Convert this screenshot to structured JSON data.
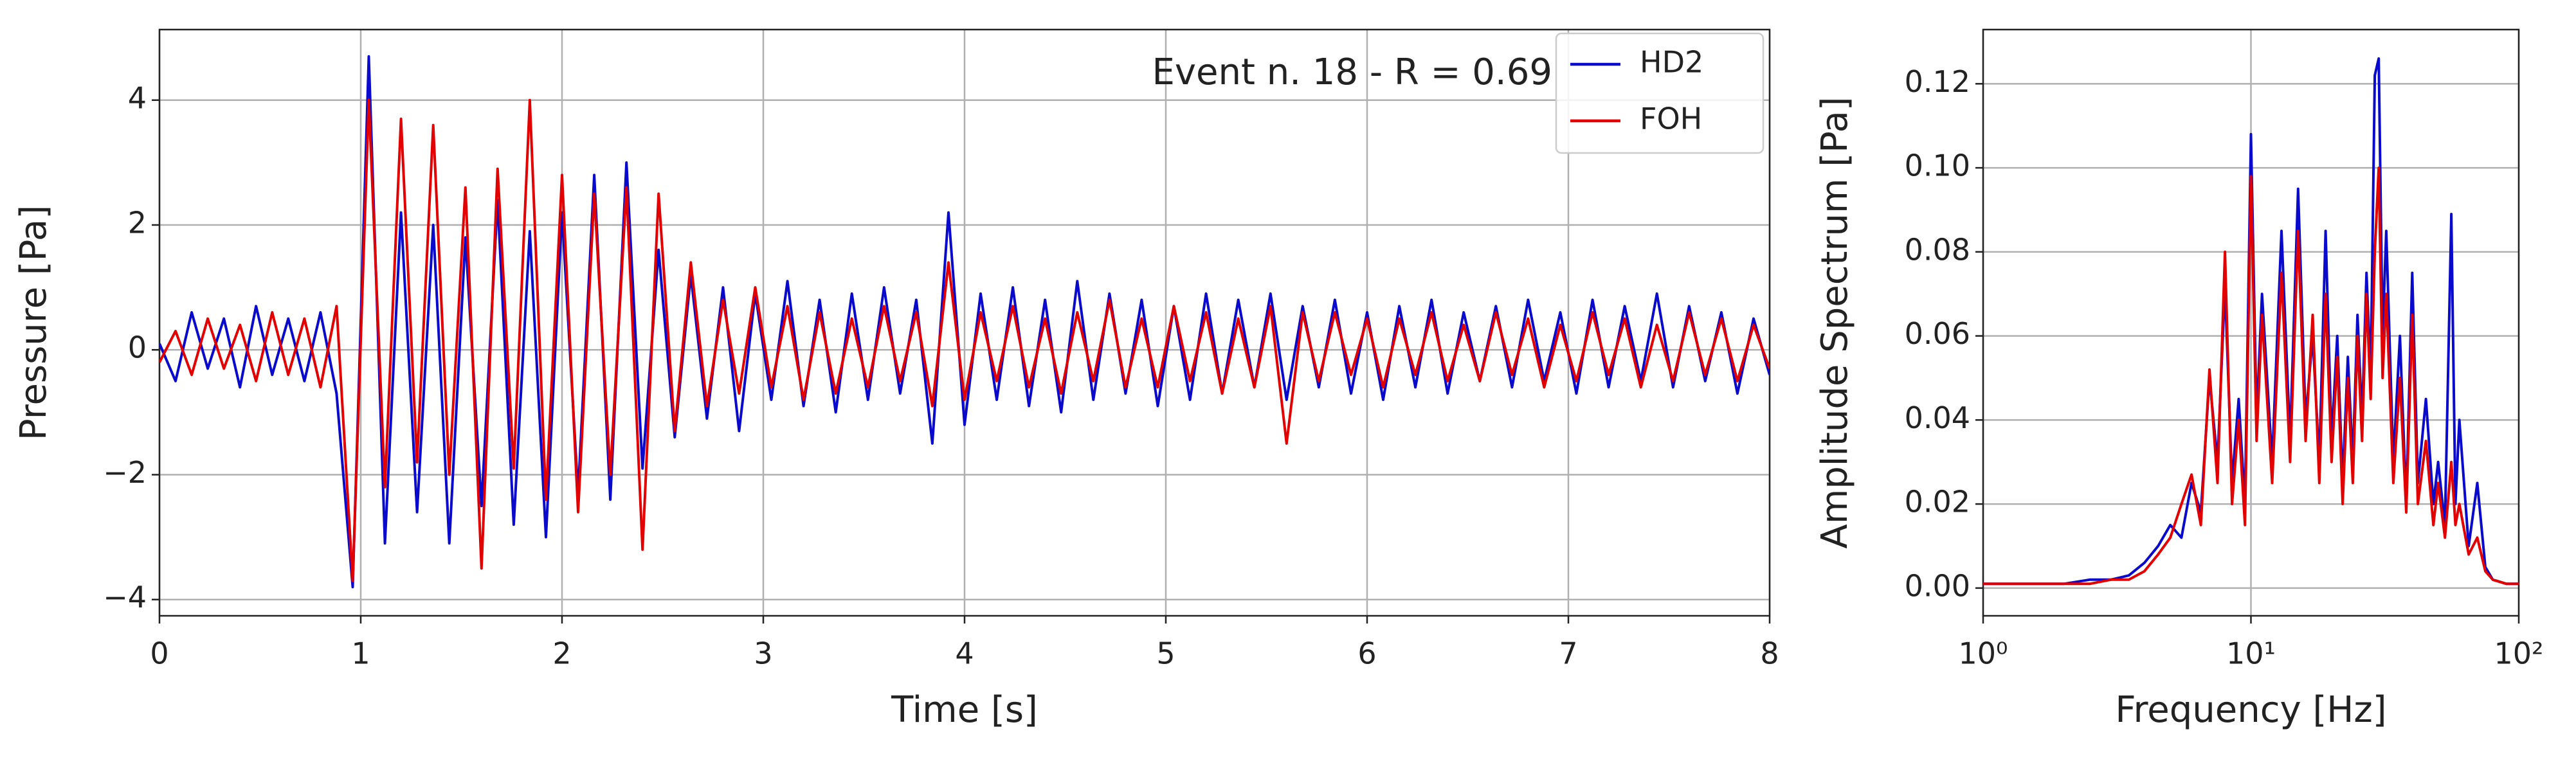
{
  "chart_data": [
    {
      "type": "line",
      "annotation": "Event n. 18 - R = 0.69",
      "xlabel": "Time [s]",
      "ylabel": "Pressure [Pa]",
      "x": [
        0,
        0.08,
        0.16,
        0.24,
        0.32,
        0.4,
        0.48,
        0.56,
        0.64,
        0.72,
        0.8,
        0.88,
        0.96,
        1.04,
        1.12,
        1.2,
        1.28,
        1.36,
        1.44,
        1.52,
        1.6,
        1.68,
        1.76,
        1.84,
        1.92,
        2.0,
        2.08,
        2.16,
        2.24,
        2.32,
        2.4,
        2.48,
        2.56,
        2.64,
        2.72,
        2.8,
        2.88,
        2.96,
        3.04,
        3.12,
        3.2,
        3.28,
        3.36,
        3.44,
        3.52,
        3.6,
        3.68,
        3.76,
        3.84,
        3.92,
        4.0,
        4.08,
        4.16,
        4.24,
        4.32,
        4.4,
        4.48,
        4.56,
        4.64,
        4.72,
        4.8,
        4.88,
        4.96,
        5.04,
        5.12,
        5.2,
        5.28,
        5.36,
        5.44,
        5.52,
        5.6,
        5.68,
        5.76,
        5.84,
        5.92,
        6.0,
        6.08,
        6.16,
        6.24,
        6.32,
        6.4,
        6.48,
        6.56,
        6.64,
        6.72,
        6.8,
        6.88,
        6.96,
        7.04,
        7.12,
        7.2,
        7.28,
        7.36,
        7.44,
        7.52,
        7.6,
        7.68,
        7.76,
        7.84,
        7.92,
        8.0
      ],
      "series": [
        {
          "name": "HD2",
          "color": "#0a0acc",
          "values": [
            0.1,
            -0.5,
            0.6,
            -0.3,
            0.5,
            -0.6,
            0.7,
            -0.4,
            0.5,
            -0.5,
            0.6,
            -0.7,
            -3.8,
            4.7,
            -3.1,
            2.2,
            -2.6,
            2.0,
            -3.1,
            1.8,
            -2.5,
            2.4,
            -2.8,
            1.9,
            -3.0,
            2.2,
            -2.3,
            2.8,
            -2.4,
            3.0,
            -1.9,
            1.6,
            -1.4,
            1.2,
            -1.1,
            1.0,
            -1.3,
            0.9,
            -0.8,
            1.1,
            -0.9,
            0.8,
            -1.0,
            0.9,
            -0.8,
            1.0,
            -0.7,
            0.8,
            -1.5,
            2.2,
            -1.2,
            0.9,
            -0.8,
            1.0,
            -0.9,
            0.8,
            -1.0,
            1.1,
            -0.8,
            0.9,
            -0.7,
            0.8,
            -0.9,
            0.7,
            -0.8,
            0.9,
            -0.7,
            0.8,
            -0.6,
            0.9,
            -0.8,
            0.7,
            -0.6,
            0.8,
            -0.7,
            0.6,
            -0.8,
            0.7,
            -0.6,
            0.8,
            -0.7,
            0.6,
            -0.5,
            0.7,
            -0.6,
            0.8,
            -0.5,
            0.6,
            -0.7,
            0.8,
            -0.6,
            0.7,
            -0.5,
            0.9,
            -0.6,
            0.7,
            -0.5,
            0.6,
            -0.7,
            0.5,
            -0.4
          ]
        },
        {
          "name": "FOH",
          "color": "#e30000",
          "values": [
            -0.2,
            0.3,
            -0.4,
            0.5,
            -0.3,
            0.4,
            -0.5,
            0.6,
            -0.4,
            0.5,
            -0.6,
            0.7,
            -3.7,
            4.0,
            -2.2,
            3.7,
            -1.8,
            3.6,
            -2.0,
            2.6,
            -3.5,
            2.9,
            -1.9,
            4.0,
            -2.4,
            2.8,
            -2.6,
            2.5,
            -2.0,
            2.6,
            -3.2,
            2.5,
            -1.3,
            1.4,
            -0.9,
            0.8,
            -0.7,
            1.0,
            -0.6,
            0.7,
            -0.8,
            0.6,
            -0.7,
            0.5,
            -0.6,
            0.7,
            -0.5,
            0.6,
            -0.9,
            1.4,
            -0.8,
            0.6,
            -0.5,
            0.7,
            -0.6,
            0.5,
            -0.7,
            0.6,
            -0.5,
            0.8,
            -0.6,
            0.5,
            -0.6,
            0.7,
            -0.5,
            0.6,
            -0.7,
            0.5,
            -0.6,
            0.7,
            -1.5,
            0.6,
            -0.5,
            0.6,
            -0.4,
            0.5,
            -0.6,
            0.5,
            -0.4,
            0.6,
            -0.5,
            0.4,
            -0.5,
            0.6,
            -0.4,
            0.5,
            -0.6,
            0.4,
            -0.5,
            0.6,
            -0.4,
            0.5,
            -0.6,
            0.4,
            -0.5,
            0.6,
            -0.4,
            0.5,
            -0.5,
            0.4,
            -0.3
          ]
        }
      ],
      "xlim": [
        0,
        8
      ],
      "xticks": [
        0,
        1,
        2,
        3,
        4,
        5,
        6,
        7,
        8
      ],
      "ylim": [
        -4.26,
        5.13
      ],
      "yticks": [
        {
          "value": -4,
          "label": "−4"
        },
        {
          "value": -2,
          "label": "−2"
        },
        0,
        2,
        4
      ],
      "grid": true,
      "legend": "upper right"
    },
    {
      "type": "line",
      "xlabel": "Frequency [Hz]",
      "ylabel": "Amplitude Spectrum [Pa]",
      "xscale": "log",
      "x": [
        1,
        1.5,
        2,
        2.5,
        3,
        3.5,
        4,
        4.5,
        5,
        5.5,
        6,
        6.5,
        7,
        7.5,
        8,
        8.5,
        9,
        9.5,
        10,
        10.5,
        11,
        12,
        13,
        14,
        15,
        16,
        17,
        18,
        19,
        20,
        21,
        22,
        23,
        24,
        25,
        26,
        27,
        28,
        29,
        30,
        31,
        32,
        34,
        36,
        38,
        40,
        42,
        45,
        48,
        50,
        53,
        56,
        58,
        60,
        65,
        70,
        75,
        80,
        90,
        100
      ],
      "series": [
        {
          "name": "HD2",
          "color": "#0a0acc",
          "values": [
            0.001,
            0.001,
            0.001,
            0.002,
            0.002,
            0.003,
            0.006,
            0.01,
            0.015,
            0.012,
            0.025,
            0.018,
            0.05,
            0.03,
            0.072,
            0.025,
            0.045,
            0.02,
            0.108,
            0.04,
            0.07,
            0.03,
            0.085,
            0.035,
            0.095,
            0.04,
            0.06,
            0.03,
            0.085,
            0.035,
            0.06,
            0.025,
            0.055,
            0.03,
            0.065,
            0.04,
            0.075,
            0.05,
            0.122,
            0.126,
            0.06,
            0.085,
            0.03,
            0.06,
            0.02,
            0.075,
            0.025,
            0.045,
            0.02,
            0.03,
            0.015,
            0.089,
            0.02,
            0.04,
            0.01,
            0.025,
            0.005,
            0.002,
            0.001,
            0.001
          ]
        },
        {
          "name": "FOH",
          "color": "#e30000",
          "values": [
            0.001,
            0.001,
            0.001,
            0.001,
            0.002,
            0.002,
            0.004,
            0.008,
            0.012,
            0.02,
            0.027,
            0.015,
            0.052,
            0.025,
            0.08,
            0.02,
            0.04,
            0.015,
            0.098,
            0.035,
            0.065,
            0.025,
            0.075,
            0.03,
            0.085,
            0.035,
            0.065,
            0.025,
            0.07,
            0.03,
            0.055,
            0.02,
            0.05,
            0.025,
            0.06,
            0.035,
            0.07,
            0.045,
            0.08,
            0.1,
            0.05,
            0.07,
            0.025,
            0.05,
            0.018,
            0.065,
            0.02,
            0.035,
            0.015,
            0.025,
            0.012,
            0.03,
            0.015,
            0.02,
            0.008,
            0.012,
            0.004,
            0.002,
            0.001,
            0.001
          ]
        }
      ],
      "xlim": [
        1,
        100
      ],
      "xticks": [
        {
          "value": 1,
          "label": "10⁰"
        },
        {
          "value": 10,
          "label": "10¹"
        },
        {
          "value": 100,
          "label": "10²"
        }
      ],
      "ylim": [
        -0.0066,
        0.1329
      ],
      "yticks": [
        {
          "value": 0,
          "label": "0.00"
        },
        {
          "value": 0.02,
          "label": "0.02"
        },
        {
          "value": 0.04,
          "label": "0.04"
        },
        {
          "value": 0.06,
          "label": "0.06"
        },
        {
          "value": 0.08,
          "label": "0.08"
        },
        {
          "value": 0.1,
          "label": "0.10"
        },
        {
          "value": 0.12,
          "label": "0.12"
        }
      ],
      "grid": true
    }
  ]
}
